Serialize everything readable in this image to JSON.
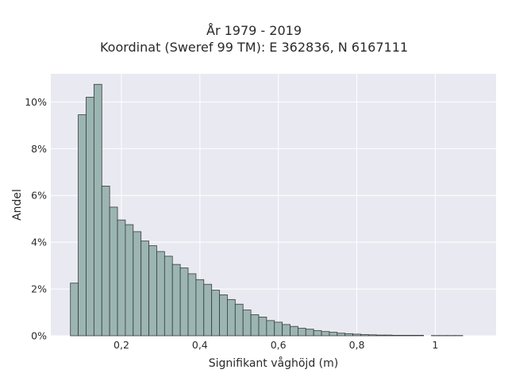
{
  "chart_data": {
    "type": "bar",
    "title": "År 1979 - 2019",
    "subtitle": "Koordinat (Sweref 99 TM): E 362836, N 6167111",
    "xlabel": "Signifikant våghöjd (m)",
    "ylabel": "Andel",
    "xlim": [
      0.02,
      1.155
    ],
    "ylim": [
      0,
      11.2
    ],
    "xticks": [
      0.2,
      0.4,
      0.6,
      0.8,
      1.0
    ],
    "xtick_labels": [
      "0,2",
      "0,4",
      "0,6",
      "0,8",
      "1"
    ],
    "yticks": [
      0,
      2,
      4,
      6,
      8,
      10
    ],
    "ytick_labels": [
      "0%",
      "2%",
      "4%",
      "6%",
      "8%",
      "10%"
    ],
    "bin_start": 0.07,
    "bin_width": 0.02,
    "values": [
      2.25,
      9.45,
      10.2,
      10.75,
      6.4,
      5.5,
      4.95,
      4.75,
      4.45,
      4.05,
      3.85,
      3.6,
      3.4,
      3.05,
      2.9,
      2.65,
      2.4,
      2.2,
      1.95,
      1.75,
      1.55,
      1.35,
      1.1,
      0.9,
      0.8,
      0.65,
      0.58,
      0.48,
      0.4,
      0.32,
      0.28,
      0.22,
      0.18,
      0.15,
      0.11,
      0.09,
      0.07,
      0.05,
      0.04,
      0.03,
      0.03,
      0.02,
      0.02,
      0.02,
      0.02,
      0,
      0.01,
      0.01,
      0.01,
      0.01
    ],
    "grid": true,
    "colors": {
      "bar_fill": "#9bb5b2",
      "bar_edge": "#3a3a3a",
      "plot_bg": "#e9e9f1",
      "grid": "#ffffff"
    }
  }
}
